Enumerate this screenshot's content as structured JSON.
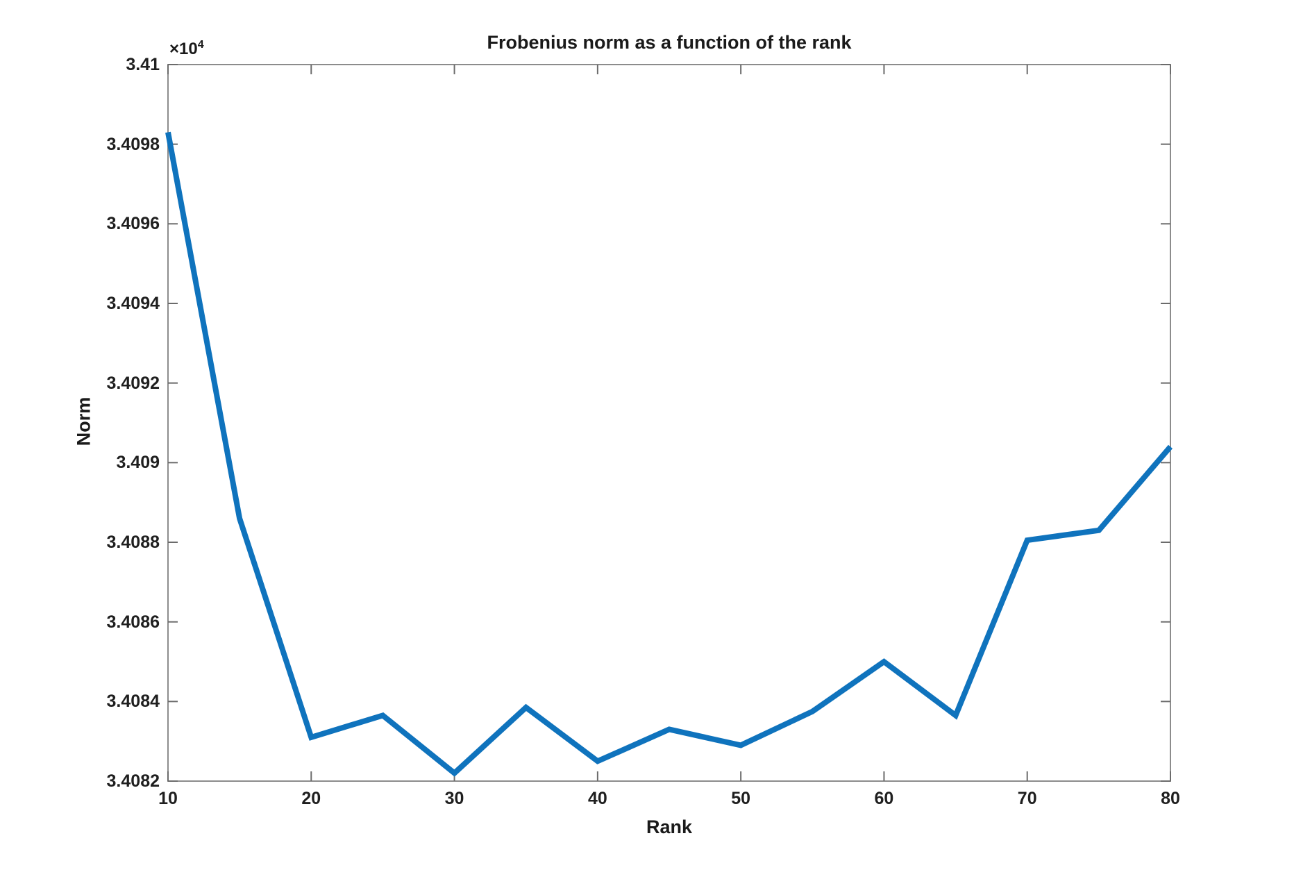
{
  "figure": {
    "title": "Frobenius norm as a function of the rank",
    "xlabel": "Rank",
    "ylabel": "Norm"
  },
  "chart_data": {
    "type": "line",
    "title": "Frobenius norm as a function of the rank",
    "xlabel": "Rank",
    "ylabel": "Norm",
    "x": [
      10,
      15,
      20,
      25,
      30,
      35,
      40,
      45,
      50,
      55,
      60,
      65,
      70,
      75,
      80
    ],
    "y": [
      34098.3,
      34088.6,
      34083.1,
      34083.65,
      34082.2,
      34083.85,
      34082.5,
      34083.3,
      34082.9,
      34083.75,
      34085.0,
      34083.65,
      34088.05,
      34088.3,
      34090.4
    ],
    "xlim": [
      10,
      80
    ],
    "ylim": [
      34082,
      34100
    ],
    "xticks": {
      "values": [
        10,
        20,
        30,
        40,
        50,
        60,
        70,
        80
      ],
      "labels": [
        "10",
        "20",
        "30",
        "40",
        "50",
        "60",
        "70",
        "80"
      ]
    },
    "yticks": {
      "values": [
        34082,
        34084,
        34086,
        34088,
        34090,
        34092,
        34094,
        34096,
        34098,
        34100
      ],
      "labels": [
        "3.4082",
        "3.4084",
        "3.4086",
        "3.4088",
        "3.409",
        "3.4092",
        "3.4094",
        "3.4096",
        "3.4098",
        "3.41"
      ]
    },
    "y_exponent": {
      "base": "×10",
      "power": "4"
    },
    "grid": false,
    "legend": null,
    "colors": {
      "line": "#0f73bd",
      "axis_box": "#8c8c8c",
      "tick_marks": "#6b6b6b",
      "text": "#1f1f1f"
    }
  }
}
